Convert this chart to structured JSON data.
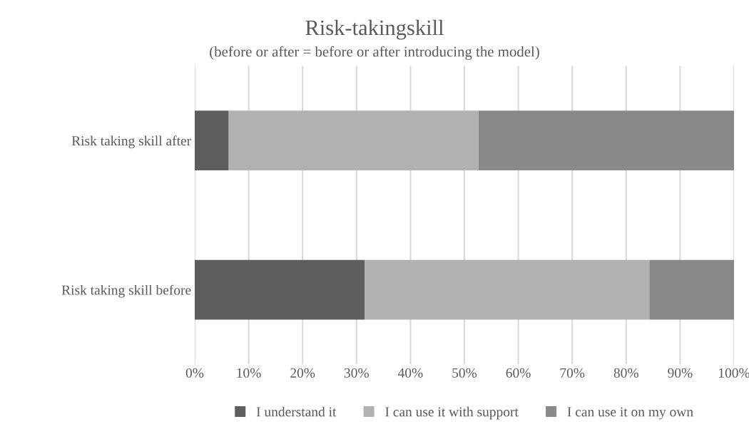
{
  "chart_data": {
    "type": "bar",
    "orientation": "horizontal",
    "stacked": true,
    "title": "Risk-takingskill",
    "subtitle": "(before or after = before or after introducing the model)",
    "categories": [
      "Risk taking skill after",
      "Risk taking skill before"
    ],
    "series": [
      {
        "name": "I understand it",
        "color": "#5e5e5e",
        "values": [
          6.3,
          31.5
        ]
      },
      {
        "name": "I can use it with support",
        "color": "#b1b1b1",
        "values": [
          46.3,
          52.8
        ]
      },
      {
        "name": "I can use it on my own",
        "color": "#898989",
        "values": [
          47.4,
          15.7
        ]
      }
    ],
    "xlim": [
      0,
      100
    ],
    "xticks": [
      {
        "value": 0,
        "label": "0%"
      },
      {
        "value": 10,
        "label": "10%"
      },
      {
        "value": 20,
        "label": "20%"
      },
      {
        "value": 30,
        "label": "30%"
      },
      {
        "value": 40,
        "label": "40%"
      },
      {
        "value": 50,
        "label": "50%"
      },
      {
        "value": 60,
        "label": "60%"
      },
      {
        "value": 70,
        "label": "70%"
      },
      {
        "value": 80,
        "label": "80%"
      },
      {
        "value": 90,
        "label": "90%"
      },
      {
        "value": 100,
        "label": "100%"
      }
    ],
    "grid": "x",
    "legend": "bottom"
  }
}
